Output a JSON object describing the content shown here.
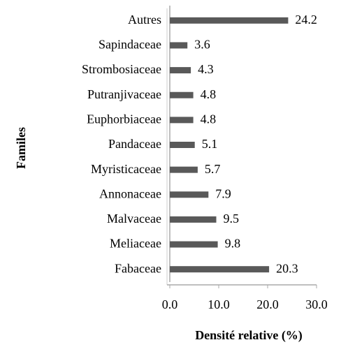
{
  "chart_data": {
    "type": "hbar",
    "categories": [
      "Autres",
      "Sapindaceae",
      "Strombosiaceae",
      "Putranjivaceae",
      "Euphorbiaceae",
      "Pandaceae",
      "Myristicaceae",
      "Annonaceae",
      "Malvaceae",
      "Meliaceae",
      "Fabaceae"
    ],
    "values": [
      24.2,
      3.6,
      4.3,
      4.8,
      4.8,
      5.1,
      5.7,
      7.9,
      9.5,
      9.8,
      20.3
    ],
    "color": "#595959",
    "xlim": [
      0,
      30
    ],
    "xticks": [
      {
        "value": 0,
        "label": "0.0"
      },
      {
        "value": 10,
        "label": "10.0"
      },
      {
        "value": 20,
        "label": "20.0"
      },
      {
        "value": 30,
        "label": "30.0"
      }
    ],
    "xlabel": "Densité relative (%)",
    "ylabel": "Familes"
  }
}
